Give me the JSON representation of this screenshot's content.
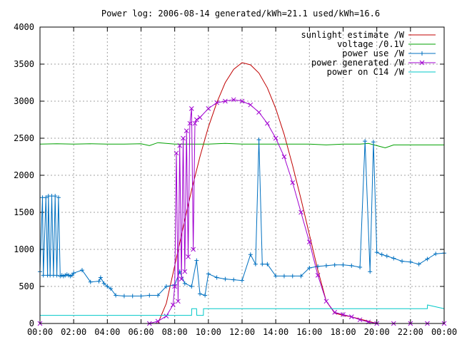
{
  "chart_data": {
    "type": "line",
    "title": "Power log: 2006-08-14 generated/kWh=21.1 used/kWh=16.6",
    "xlabel": "",
    "ylabel": "",
    "xlim": [
      0,
      24
    ],
    "ylim": [
      0,
      4000
    ],
    "x_ticks": [
      "00:00",
      "02:00",
      "04:00",
      "06:00",
      "08:00",
      "10:00",
      "12:00",
      "14:00",
      "16:00",
      "18:00",
      "20:00",
      "22:00",
      "00:00"
    ],
    "y_ticks": [
      0,
      500,
      1000,
      1500,
      2000,
      2500,
      3000,
      3500,
      4000
    ],
    "grid": true,
    "legend_position": "top-right",
    "series": [
      {
        "name": "sunlight estimate /W",
        "color": "#c00000",
        "style": "line",
        "x": [
          7.0,
          7.5,
          8.0,
          8.5,
          9.0,
          9.5,
          10.0,
          10.5,
          11.0,
          11.5,
          12.0,
          12.5,
          13.0,
          13.5,
          14.0,
          14.5,
          15.0,
          15.5,
          16.0,
          16.5,
          17.0,
          17.5,
          18.0,
          18.5,
          19.0,
          19.5,
          20.0
        ],
        "y": [
          0,
          270,
          780,
          1300,
          1800,
          2250,
          2650,
          2980,
          3250,
          3430,
          3520,
          3490,
          3380,
          3180,
          2900,
          2550,
          2130,
          1680,
          1200,
          720,
          300,
          140,
          110,
          90,
          60,
          30,
          0
        ]
      },
      {
        "name": "voltage /0.1V",
        "color": "#00a000",
        "style": "line",
        "x": [
          0,
          1,
          2,
          3,
          4,
          5,
          6,
          6.5,
          7,
          7.5,
          8,
          9,
          10,
          11,
          12,
          13,
          14,
          15,
          16,
          17,
          18,
          19,
          19.5,
          20,
          20.5,
          21,
          22,
          23,
          24
        ],
        "y": [
          2420,
          2425,
          2420,
          2425,
          2420,
          2420,
          2425,
          2400,
          2440,
          2430,
          2420,
          2420,
          2420,
          2430,
          2420,
          2420,
          2420,
          2420,
          2420,
          2410,
          2420,
          2420,
          2430,
          2400,
          2370,
          2410,
          2410,
          2410,
          2410
        ]
      },
      {
        "name": "power use /W",
        "color": "#0070c0",
        "style": "line+plus",
        "x": [
          0,
          0.15,
          0.2,
          0.35,
          0.45,
          0.5,
          0.6,
          0.7,
          0.8,
          0.9,
          1.0,
          1.1,
          1.2,
          1.3,
          1.4,
          1.5,
          1.6,
          1.7,
          1.8,
          1.9,
          2.0,
          2.5,
          3.0,
          3.5,
          3.6,
          3.8,
          4.0,
          4.2,
          4.5,
          5.0,
          5.5,
          6.0,
          6.5,
          7.0,
          7.5,
          8.0,
          8.3,
          8.6,
          9.0,
          9.3,
          9.5,
          9.8,
          10.0,
          10.5,
          11.0,
          11.5,
          12.0,
          12.5,
          12.8,
          13.0,
          13.2,
          13.5,
          14.0,
          14.5,
          15.0,
          15.5,
          16.0,
          16.5,
          17.0,
          17.5,
          18.0,
          18.5,
          19.0,
          19.3,
          19.6,
          19.8,
          20.0,
          20.3,
          20.6,
          21.0,
          21.5,
          22.0,
          22.5,
          23.0,
          23.5,
          24.0
        ],
        "y": [
          700,
          1700,
          650,
          1700,
          650,
          1720,
          650,
          1720,
          650,
          1720,
          650,
          1700,
          640,
          650,
          640,
          650,
          660,
          650,
          640,
          650,
          680,
          720,
          560,
          570,
          620,
          540,
          500,
          470,
          380,
          370,
          370,
          370,
          380,
          380,
          500,
          520,
          700,
          540,
          500,
          850,
          400,
          380,
          670,
          620,
          600,
          590,
          580,
          930,
          800,
          2480,
          800,
          800,
          640,
          640,
          640,
          640,
          750,
          770,
          780,
          790,
          790,
          780,
          760,
          2460,
          700,
          2450,
          960,
          930,
          910,
          880,
          840,
          830,
          800,
          870,
          940,
          950
        ]
      },
      {
        "name": "power generated /W",
        "color": "#a000d0",
        "style": "line+x",
        "x": [
          0,
          6.5,
          7.0,
          7.5,
          7.9,
          8.0,
          8.1,
          8.2,
          8.3,
          8.4,
          8.5,
          8.6,
          8.7,
          8.8,
          8.9,
          9.0,
          9.1,
          9.2,
          9.3,
          9.5,
          10.0,
          10.5,
          11.0,
          11.5,
          12.0,
          12.5,
          13.0,
          13.5,
          14.0,
          14.5,
          15.0,
          15.5,
          16.0,
          16.5,
          17.0,
          17.5,
          18.0,
          18.5,
          19.0,
          19.5,
          20.0,
          21.0,
          22.0,
          23.0,
          24.0
        ],
        "y": [
          0,
          0,
          30,
          100,
          250,
          500,
          2300,
          300,
          2400,
          600,
          2500,
          700,
          2600,
          900,
          2700,
          2900,
          1000,
          2700,
          2750,
          2780,
          2900,
          2980,
          3000,
          3020,
          3000,
          2950,
          2850,
          2700,
          2500,
          2250,
          1900,
          1500,
          1100,
          650,
          300,
          150,
          120,
          90,
          50,
          20,
          0,
          0,
          0,
          0,
          0
        ]
      },
      {
        "name": "power on C14 /W",
        "color": "#00c8c8",
        "style": "line",
        "x": [
          0,
          9.0,
          9.01,
          9.3,
          9.31,
          9.7,
          9.71,
          19.8,
          19.81,
          23.0,
          23.01,
          24.0
        ],
        "y": [
          110,
          110,
          200,
          200,
          110,
          110,
          200,
          200,
          200,
          200,
          250,
          200
        ]
      }
    ]
  }
}
